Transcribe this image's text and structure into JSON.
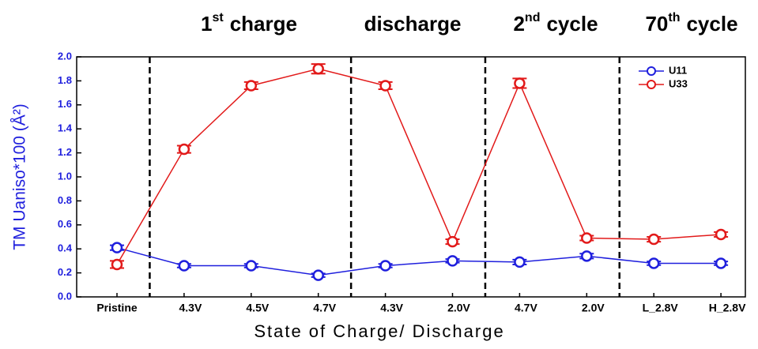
{
  "chart_data": {
    "type": "line",
    "sections": [
      {
        "number": "1",
        "suffix": "st",
        "text": "charge"
      },
      {
        "text": "discharge"
      },
      {
        "number": "2",
        "suffix": "nd",
        "text": "cycle"
      },
      {
        "number": "70",
        "suffix": "th",
        "text": "cycle"
      }
    ],
    "y_label": "TM Uaniso*100 (Å²)",
    "x_label": "State of Charge/ Discharge",
    "categories": [
      "Pristine",
      "4.3V",
      "4.5V",
      "4.7V",
      "4.3V",
      "2.0V",
      "4.7V",
      "2.0V",
      "L_2.8V",
      "H_2.8V"
    ],
    "ylim": [
      0,
      2
    ],
    "yticks": [
      {
        "value": 0,
        "label": "0.0"
      },
      0.2,
      0.4,
      0.6,
      0.8,
      {
        "value": 1,
        "label": "1.0"
      },
      1.2,
      1.4,
      1.6,
      1.8,
      {
        "value": 2,
        "label": "2.0"
      }
    ],
    "legend": "upper right",
    "series": [
      {
        "name": "U11",
        "color": "#1f1fdd",
        "values": [
          0.41,
          0.26,
          0.26,
          0.18,
          0.26,
          0.3,
          0.29,
          0.34,
          0.28,
          0.28
        ],
        "errors": [
          0.02,
          0.015,
          0.015,
          0.015,
          0.015,
          0.015,
          0.02,
          0.02,
          0.015,
          0.015
        ]
      },
      {
        "name": "U33",
        "color": "#e21a1a",
        "values": [
          0.27,
          1.23,
          1.76,
          1.9,
          1.76,
          0.46,
          1.78,
          0.49,
          0.48,
          0.52
        ],
        "errors": [
          0.03,
          0.03,
          0.03,
          0.04,
          0.03,
          0.02,
          0.04,
          0.02,
          0.02,
          0.02
        ]
      }
    ]
  }
}
